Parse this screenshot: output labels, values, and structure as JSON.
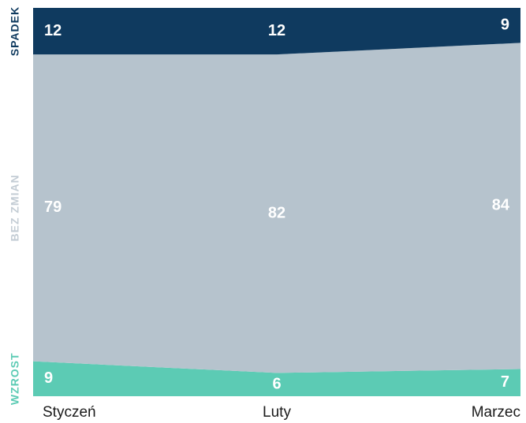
{
  "chart_data": {
    "type": "area",
    "categories": [
      "Styczeń",
      "Luty",
      "Marzec"
    ],
    "series": [
      {
        "name": "WZROST",
        "color": "#5ccbb4",
        "legend_color": "#5ccbb4",
        "values": [
          9,
          6,
          7
        ]
      },
      {
        "name": "BEZ ZMIAN",
        "color": "#b6c3cd",
        "legend_color": "#c3ccd4",
        "values": [
          79,
          82,
          84
        ]
      },
      {
        "name": "SPADEK",
        "color": "#0f3a5f",
        "legend_color": "#0f3a5f",
        "values": [
          12,
          12,
          9
        ]
      }
    ]
  }
}
